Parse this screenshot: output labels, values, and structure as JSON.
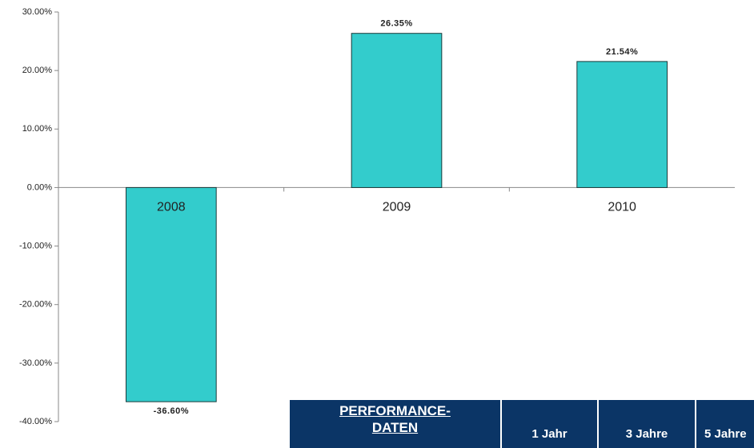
{
  "chart_data": {
    "type": "bar",
    "categories": [
      "2008",
      "2009",
      "2010"
    ],
    "values": [
      -36.6,
      26.35,
      21.54
    ],
    "value_labels": [
      "-36.60%",
      "26.35%",
      "21.54%"
    ],
    "color": "#33cccc",
    "ylim": [
      -40,
      30
    ],
    "yticks": [
      {
        "value": -40,
        "label": "-40.00%"
      },
      {
        "value": -30,
        "label": "-30.00%"
      },
      {
        "value": -20,
        "label": "-20.00%"
      },
      {
        "value": -10,
        "label": "-10.00%"
      },
      {
        "value": 0,
        "label": "0.00%"
      },
      {
        "value": 10,
        "label": "10.00%"
      },
      {
        "value": 20,
        "label": "20.00%"
      },
      {
        "value": 30,
        "label": "30.00%"
      }
    ],
    "grid": false
  },
  "table": {
    "header": [
      "PERFORMANCE-DATEN",
      "1 Jahr",
      "3 Jahre",
      "5 Jahre"
    ]
  }
}
